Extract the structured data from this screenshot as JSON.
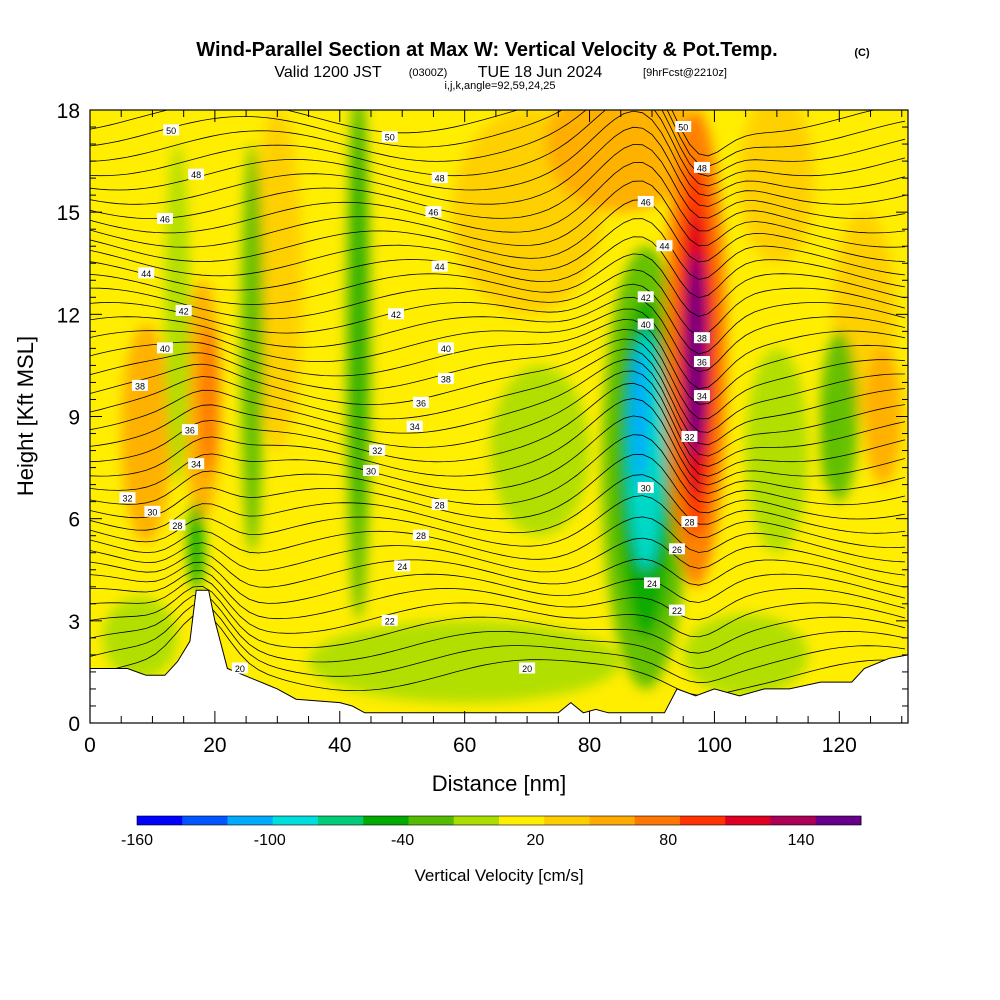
{
  "title": {
    "main": "Wind-Parallel Section at Max W: Vertical Velocity & Pot.Temp.",
    "unit_tag": "(C)",
    "valid_prefix": "Valid 1200 JST",
    "valid_utc": "(0300Z)",
    "valid_date": "TUE 18 Jun 2024",
    "forecast_tag": "[9hrFcst@2210z]",
    "section_params": "i,j,k,angle=92,59,24,25"
  },
  "chart_data": {
    "type": "heatmap",
    "xlabel": "Distance [nm]",
    "ylabel": "Height [Kft MSL]",
    "xlim": [
      0,
      131
    ],
    "ylim": [
      0,
      18
    ],
    "x_ticks": [
      0,
      20,
      40,
      60,
      80,
      100,
      120
    ],
    "y_ticks": [
      0,
      3,
      6,
      9,
      12,
      15,
      18
    ],
    "x_tick_labels": [
      "0",
      "20",
      "40",
      "60",
      "80",
      "100",
      "120"
    ],
    "y_tick_labels": [
      "0",
      "3",
      "6",
      "9",
      "12",
      "15",
      "18"
    ],
    "background_field": "Vertical Velocity [cm/s]",
    "colorbar": {
      "label": "Vertical Velocity [cm/s]",
      "tick_values": [
        -160,
        -100,
        -40,
        20,
        80,
        140
      ],
      "tick_labels": [
        "-160",
        "-100",
        "-40",
        "20",
        "80",
        "140"
      ],
      "colors": [
        "#0000ff",
        "#0055ff",
        "#00aaff",
        "#00dddd",
        "#00cc77",
        "#00aa00",
        "#55bb00",
        "#aadd00",
        "#ffee00",
        "#ffcc00",
        "#ffaa00",
        "#ff7700",
        "#ff3300",
        "#dd0022",
        "#aa0055",
        "#660088"
      ]
    },
    "updraft_max": {
      "x": 97,
      "y_range": [
        8,
        14
      ],
      "value_cm_s": 140
    },
    "downdraft_min": {
      "x": 88,
      "y_range": [
        6,
        10
      ],
      "value_cm_s": -100
    },
    "terrain": [
      [
        0,
        1.6
      ],
      [
        6,
        1.6
      ],
      [
        9,
        1.4
      ],
      [
        12,
        1.4
      ],
      [
        14,
        1.8
      ],
      [
        16,
        2.4
      ],
      [
        17,
        3.9
      ],
      [
        19,
        3.9
      ],
      [
        20,
        3.0
      ],
      [
        22,
        1.6
      ],
      [
        26,
        1.3
      ],
      [
        30,
        1.0
      ],
      [
        33,
        0.7
      ],
      [
        40,
        0.6
      ],
      [
        42,
        0.5
      ],
      [
        44,
        0.3
      ],
      [
        60,
        0.3
      ],
      [
        75,
        0.3
      ],
      [
        77,
        0.6
      ],
      [
        79,
        0.3
      ],
      [
        81,
        0.4
      ],
      [
        83,
        0.3
      ],
      [
        92,
        0.3
      ],
      [
        94,
        1.0
      ],
      [
        97,
        0.8
      ],
      [
        100,
        1.0
      ],
      [
        104,
        0.8
      ],
      [
        108,
        1.0
      ],
      [
        112,
        1.0
      ],
      [
        117,
        1.2
      ],
      [
        122,
        1.2
      ],
      [
        124,
        1.6
      ],
      [
        128,
        1.9
      ],
      [
        131,
        2.0
      ]
    ],
    "theta_contour_labels": [
      {
        "v": "50",
        "x": 13,
        "y": 17.4
      },
      {
        "v": "48",
        "x": 17,
        "y": 16.1
      },
      {
        "v": "46",
        "x": 12,
        "y": 14.8
      },
      {
        "v": "44",
        "x": 9,
        "y": 13.2
      },
      {
        "v": "42",
        "x": 15,
        "y": 12.1
      },
      {
        "v": "40",
        "x": 12,
        "y": 11.0
      },
      {
        "v": "38",
        "x": 8,
        "y": 9.9
      },
      {
        "v": "36",
        "x": 16,
        "y": 8.6
      },
      {
        "v": "34",
        "x": 17,
        "y": 7.6
      },
      {
        "v": "32",
        "x": 6,
        "y": 6.6
      },
      {
        "v": "30",
        "x": 10,
        "y": 6.2
      },
      {
        "v": "28",
        "x": 14,
        "y": 5.8
      },
      {
        "v": "50",
        "x": 48,
        "y": 17.2
      },
      {
        "v": "48",
        "x": 56,
        "y": 16.0
      },
      {
        "v": "46",
        "x": 55,
        "y": 15.0
      },
      {
        "v": "44",
        "x": 56,
        "y": 13.4
      },
      {
        "v": "42",
        "x": 49,
        "y": 12.0
      },
      {
        "v": "40",
        "x": 57,
        "y": 11.0
      },
      {
        "v": "38",
        "x": 57,
        "y": 10.1
      },
      {
        "v": "36",
        "x": 53,
        "y": 9.4
      },
      {
        "v": "34",
        "x": 52,
        "y": 8.7
      },
      {
        "v": "32",
        "x": 46,
        "y": 8.0
      },
      {
        "v": "30",
        "x": 45,
        "y": 7.4
      },
      {
        "v": "28",
        "x": 56,
        "y": 6.4
      },
      {
        "v": "28",
        "x": 53,
        "y": 5.5
      },
      {
        "v": "24",
        "x": 50,
        "y": 4.6
      },
      {
        "v": "22",
        "x": 48,
        "y": 3.0
      },
      {
        "v": "20",
        "x": 24,
        "y": 1.6
      },
      {
        "v": "20",
        "x": 70,
        "y": 1.6
      },
      {
        "v": "50",
        "x": 95,
        "y": 17.5
      },
      {
        "v": "48",
        "x": 98,
        "y": 16.3
      },
      {
        "v": "46",
        "x": 89,
        "y": 15.3
      },
      {
        "v": "44",
        "x": 92,
        "y": 14.0
      },
      {
        "v": "42",
        "x": 89,
        "y": 12.5
      },
      {
        "v": "40",
        "x": 89,
        "y": 11.7
      },
      {
        "v": "38",
        "x": 98,
        "y": 11.3
      },
      {
        "v": "36",
        "x": 98,
        "y": 10.6
      },
      {
        "v": "34",
        "x": 98,
        "y": 9.6
      },
      {
        "v": "32",
        "x": 96,
        "y": 8.4
      },
      {
        "v": "30",
        "x": 89,
        "y": 6.9
      },
      {
        "v": "28",
        "x": 96,
        "y": 5.9
      },
      {
        "v": "26",
        "x": 94,
        "y": 5.1
      },
      {
        "v": "24",
        "x": 90,
        "y": 4.1
      },
      {
        "v": "22",
        "x": 94,
        "y": 3.3
      }
    ],
    "grid": false,
    "legend": "bottom"
  }
}
